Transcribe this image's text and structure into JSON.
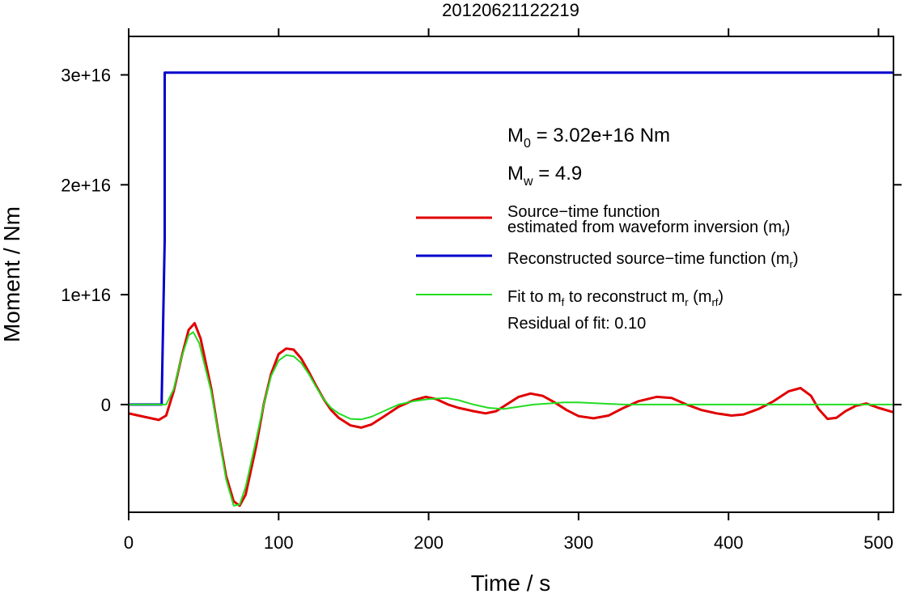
{
  "chart_data": {
    "type": "line",
    "title": "20120621122219",
    "xlabel": "Time / s",
    "ylabel": "Moment / Nm",
    "xlim": [
      0,
      510
    ],
    "ylim": [
      -9800000000000000.0,
      3.35e+16
    ],
    "x_ticks": [
      0,
      100,
      200,
      300,
      400,
      500
    ],
    "x_tick_labels": [
      "0",
      "100",
      "200",
      "300",
      "400",
      "500"
    ],
    "y_ticks": [
      0,
      1e+16,
      2e+16,
      3e+16
    ],
    "y_tick_labels": [
      "0",
      "1e+16",
      "2e+16",
      "3e+16"
    ],
    "grid": false,
    "legend_position": "right",
    "annotations": {
      "m0": {
        "base": "M",
        "sub": "0",
        "rest": " = 3.02e+16 Nm"
      },
      "mw": {
        "base": "M",
        "sub": "w",
        "rest": " = 4.9"
      },
      "residual": "Residual of fit: 0.10"
    },
    "legend": [
      {
        "color": "#e00000",
        "line1": "Source−time function",
        "line2_pre": "estimated from waveform inversion (m",
        "line2_sub": "f",
        "line2_post": ")"
      },
      {
        "color": "#0000cc",
        "pre": "Reconstructed source−time function (m",
        "sub": "r",
        "post": ")"
      },
      {
        "color": "#22dd22",
        "pre": "Fit to m",
        "sub": "f",
        "mid": " to reconstruct m",
        "sub2": "r",
        "mid2": " (m",
        "sub3": "rf",
        "post": ")"
      }
    ],
    "series": [
      {
        "color": "#0000cc",
        "x": [
          0,
          22,
          22,
          24,
          24,
          510
        ],
        "y": [
          0,
          0,
          500000000000000.0,
          1.5e+16,
          3.02e+16,
          3.02e+16
        ]
      },
      {
        "color": "#e00000",
        "x": [
          0,
          10,
          20,
          25,
          30,
          35,
          40,
          44,
          48,
          55,
          60,
          65,
          70,
          74,
          78,
          85,
          90,
          95,
          100,
          105,
          110,
          115,
          120,
          125,
          130,
          135,
          140,
          148,
          155,
          162,
          170,
          180,
          190,
          198,
          205,
          213,
          220,
          230,
          238,
          245,
          252,
          260,
          268,
          276,
          284,
          292,
          300,
          310,
          320,
          330,
          340,
          352,
          362,
          372,
          382,
          392,
          402,
          410,
          420,
          430,
          440,
          448,
          455,
          460,
          466,
          472,
          478,
          485,
          492,
          500,
          510
        ],
        "y": [
          -800000000000000.0,
          -1100000000000000.0,
          -1400000000000000.0,
          -1000000000000000.0,
          1200000000000000.0,
          4200000000000000.0,
          6800000000000000.0,
          7400000000000000.0,
          6000000000000000.0,
          1500000000000000.0,
          -2700000000000000.0,
          -6500000000000000.0,
          -8800000000000000.0,
          -9200000000000000.0,
          -8200000000000000.0,
          -3800000000000000.0,
          0,
          2800000000000000.0,
          4600000000000000.0,
          5100000000000000.0,
          5000000000000000.0,
          4200000000000000.0,
          3000000000000000.0,
          1700000000000000.0,
          500000000000000.0,
          -500000000000000.0,
          -1200000000000000.0,
          -1900000000000000.0,
          -2100000000000000.0,
          -1800000000000000.0,
          -1100000000000000.0,
          -200000000000000.0,
          400000000000000.0,
          700000000000000.0,
          500000000000000.0,
          0,
          -300000000000000.0,
          -600000000000000.0,
          -800000000000000.0,
          -600000000000000.0,
          0,
          700000000000000.0,
          1000000000000000.0,
          800000000000000.0,
          200000000000000.0,
          -500000000000000.0,
          -1050000000000000.0,
          -1250000000000000.0,
          -1000000000000000.0,
          -300000000000000.0,
          300000000000000.0,
          700000000000000.0,
          600000000000000.0,
          0,
          -500000000000000.0,
          -800000000000000.0,
          -1000000000000000.0,
          -900000000000000.0,
          -400000000000000.0,
          300000000000000.0,
          1200000000000000.0,
          1500000000000000.0,
          800000000000000.0,
          -400000000000000.0,
          -1300000000000000.0,
          -1200000000000000.0,
          -600000000000000.0,
          -100000000000000.0,
          100000000000000.0,
          -300000000000000.0,
          -700000000000000.0
        ]
      },
      {
        "color": "#22dd22",
        "x": [
          0,
          20,
          25,
          30,
          35,
          40,
          43,
          47,
          55,
          60,
          65,
          70,
          74,
          78,
          85,
          90,
          95,
          100,
          105,
          110,
          115,
          120,
          125,
          130,
          135,
          140,
          148,
          155,
          162,
          170,
          180,
          190,
          200,
          212,
          220,
          230,
          240,
          250,
          260,
          270,
          280,
          290,
          300,
          315,
          330,
          350,
          380,
          420,
          460,
          490,
          510
        ],
        "y": [
          0,
          0,
          0,
          1400000000000000.0,
          4200000000000000.0,
          6300000000000000.0,
          6600000000000000.0,
          5600000000000000.0,
          1200000000000000.0,
          -2800000000000000.0,
          -6800000000000000.0,
          -9200000000000000.0,
          -9100000000000000.0,
          -7500000000000000.0,
          -3200000000000000.0,
          0,
          2600000000000000.0,
          4000000000000000.0,
          4500000000000000.0,
          4400000000000000.0,
          3800000000000000.0,
          2800000000000000.0,
          1600000000000000.0,
          500000000000000.0,
          -300000000000000.0,
          -800000000000000.0,
          -1300000000000000.0,
          -1350000000000000.0,
          -1100000000000000.0,
          -600000000000000.0,
          0,
          300000000000000.0,
          500000000000000.0,
          600000000000000.0,
          400000000000000.0,
          0,
          -300000000000000.0,
          -400000000000000.0,
          -200000000000000.0,
          0,
          100000000000000.0,
          200000000000000.0,
          200000000000000.0,
          100000000000000.0,
          0,
          0,
          0,
          0,
          0,
          0,
          0
        ]
      }
    ]
  }
}
